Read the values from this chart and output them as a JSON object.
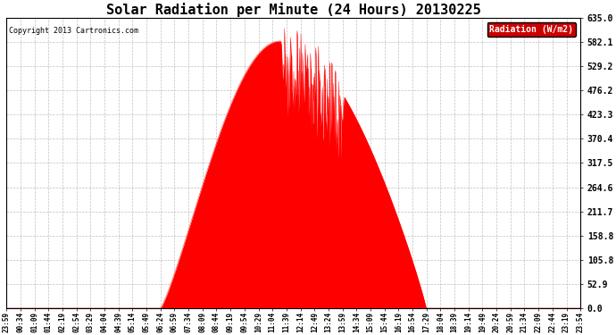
{
  "title": "Solar Radiation per Minute (24 Hours) 20130225",
  "copyright_text": "Copyright 2013 Cartronics.com",
  "legend_label": "Radiation (W/m2)",
  "legend_bg": "#cc0000",
  "legend_text_color": "#ffffff",
  "fill_color": "#ff0000",
  "line_color": "#ff0000",
  "zero_line_color": "#ff0000",
  "bg_color": "#ffffff",
  "grid_color": "#b0b0b0",
  "title_fontsize": 11,
  "ylabel_right_values": [
    0.0,
    52.9,
    105.8,
    158.8,
    211.7,
    264.6,
    317.5,
    370.4,
    423.3,
    476.2,
    529.2,
    582.1,
    635.0
  ],
  "ymax": 635.0,
  "ymin": 0.0,
  "x_tick_labels": [
    "23:59",
    "00:34",
    "01:09",
    "01:44",
    "02:19",
    "02:54",
    "03:29",
    "04:04",
    "04:39",
    "05:14",
    "05:49",
    "06:24",
    "06:59",
    "07:34",
    "08:09",
    "08:44",
    "09:19",
    "09:54",
    "10:29",
    "11:04",
    "11:39",
    "12:14",
    "12:49",
    "13:24",
    "13:59",
    "14:34",
    "15:09",
    "15:44",
    "16:19",
    "16:54",
    "17:29",
    "18:04",
    "18:39",
    "19:14",
    "19:49",
    "20:24",
    "20:59",
    "21:34",
    "22:09",
    "22:44",
    "23:19",
    "23:54"
  ]
}
